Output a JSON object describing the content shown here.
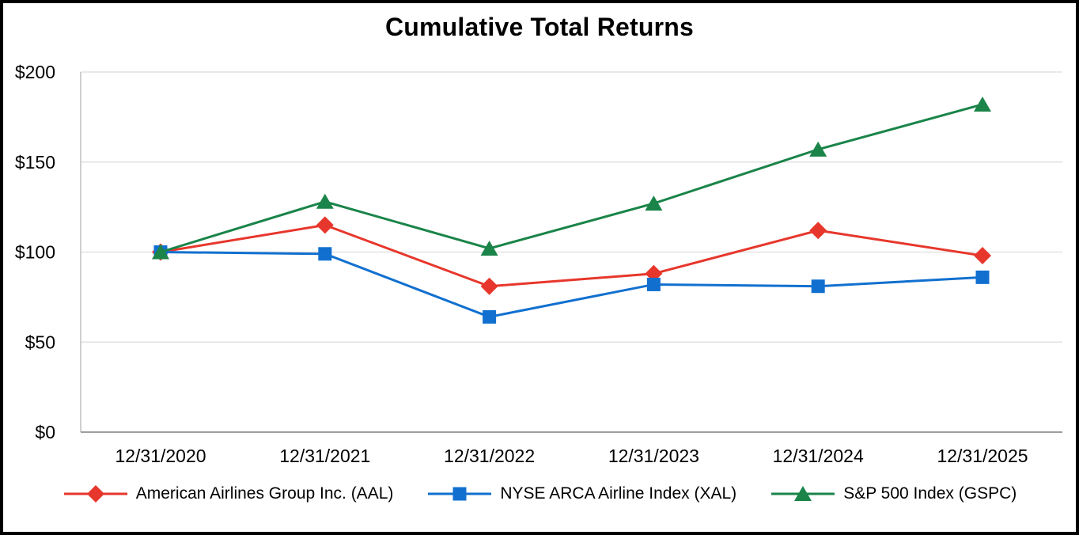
{
  "chart_data": {
    "type": "line",
    "title": "Cumulative Total Returns",
    "categories": [
      "12/31/2020",
      "12/31/2021",
      "12/31/2022",
      "12/31/2023",
      "12/31/2024",
      "12/31/2025"
    ],
    "series": [
      {
        "name": "American Airlines Group Inc. (AAL)",
        "marker": "diamond",
        "color": "#E7372C",
        "values": [
          100,
          115,
          81,
          88,
          112,
          98
        ]
      },
      {
        "name": "NYSE ARCA Airline Index (XAL)",
        "marker": "square",
        "color": "#1170CF",
        "values": [
          100,
          99,
          64,
          82,
          81,
          86
        ]
      },
      {
        "name": "S&P 500 Index (GSPC)",
        "marker": "triangle",
        "color": "#1A8449",
        "values": [
          100,
          128,
          102,
          127,
          157,
          182
        ]
      }
    ],
    "y_axis": {
      "tick_labels": [
        "$0",
        "$50",
        "$100",
        "$150",
        "$200"
      ],
      "ticks": [
        0,
        50,
        100,
        150,
        200
      ],
      "range": [
        0,
        200
      ],
      "prefix": "$"
    },
    "grid": true,
    "legend_position": "bottom",
    "colors": {
      "gridline": "#E2E2E2",
      "x_axis_line": "#9E9E9E",
      "y_axis_line": "#C0C0C0",
      "text": "#000000",
      "background": "#FFFFFF",
      "frame_border": "#000000"
    }
  }
}
